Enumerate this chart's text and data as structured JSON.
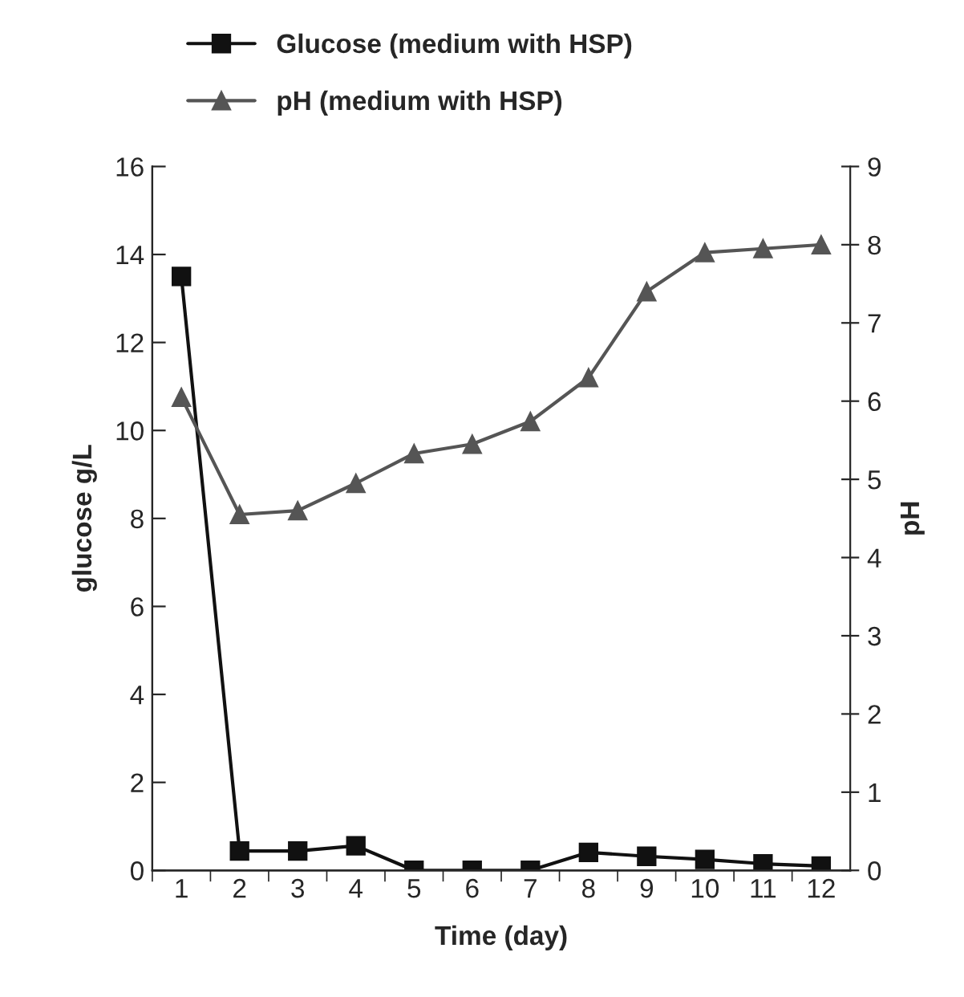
{
  "chart_data": {
    "type": "line",
    "xlabel": "Time (day)",
    "ylabel": "glucose g/L",
    "y2label": "pH",
    "categories": [
      "1",
      "2",
      "3",
      "4",
      "5",
      "6",
      "7",
      "8",
      "9",
      "10",
      "11",
      "12"
    ],
    "series": [
      {
        "name": "Glucose (medium with HSP)",
        "color": "#111111",
        "marker": "square",
        "values": [
          13.5,
          0.44,
          0.44,
          0.56,
          0,
          0,
          0,
          0.41,
          0.32,
          0.25,
          0.15,
          0.1
        ]
      },
      {
        "name": "pH (medium with HSP)",
        "color": "#555555",
        "marker": "triangle",
        "axis": "y2",
        "values": [
          6.05,
          4.55,
          4.6,
          4.95,
          5.33,
          5.45,
          5.74,
          6.3,
          7.4,
          7.9,
          7.95,
          8.0
        ]
      }
    ],
    "ylim": [
      0,
      16
    ],
    "yticks": [
      0,
      2,
      4,
      6,
      8,
      10,
      12,
      14,
      16
    ],
    "y2lim": [
      0,
      9
    ],
    "y2ticks": [
      0,
      1,
      2,
      3,
      4,
      5,
      6,
      7,
      8,
      9
    ],
    "legend": "top",
    "grid": false,
    "line_style": "solid"
  }
}
